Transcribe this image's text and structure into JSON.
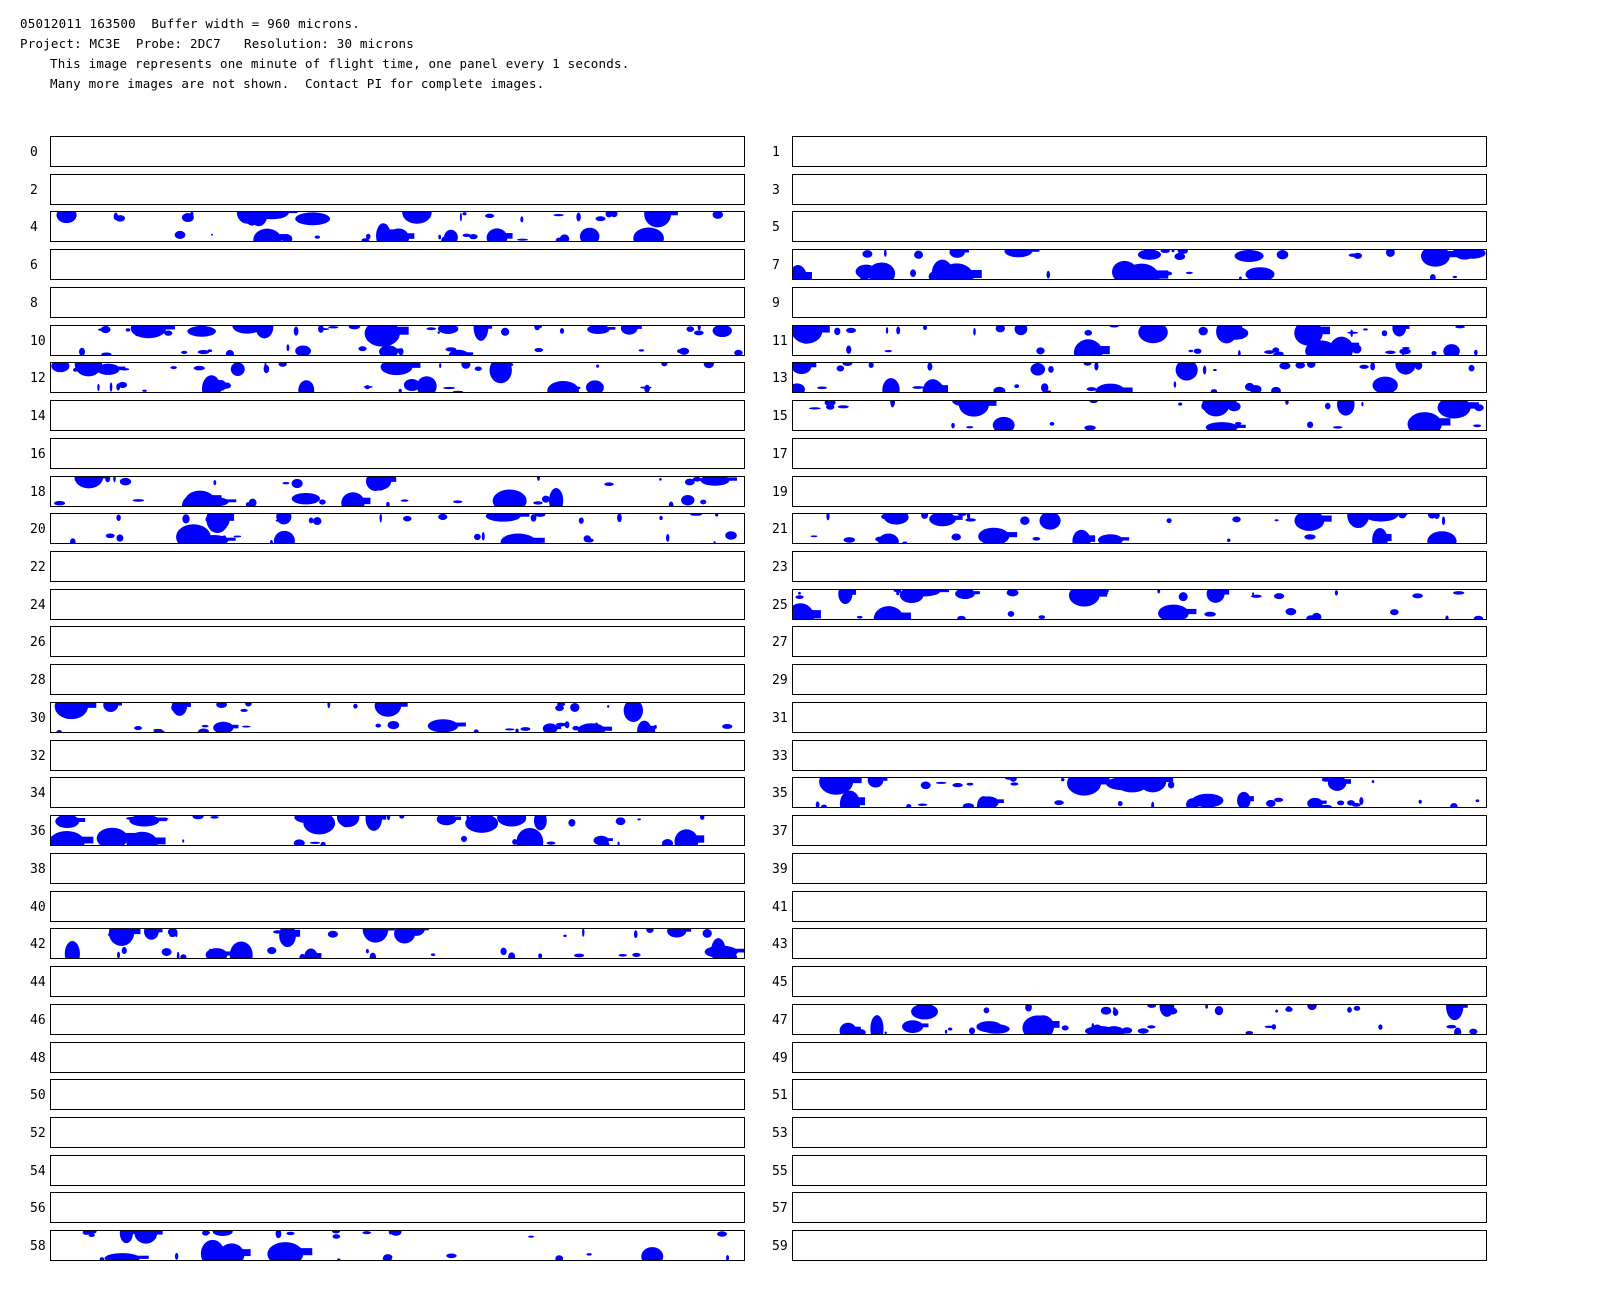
{
  "header": {
    "line1": "05012011 163500  Buffer width = 960 microns.",
    "line2": "Project: MC3E  Probe: 2DC7   Resolution: 30 microns",
    "line3": "This image represents one minute of flight time, one panel every 1 seconds.",
    "line4": "Many more images are not shown.  Contact PI for complete images."
  },
  "colors": {
    "particles": "#0000ff",
    "border": "#000000",
    "background": "#ffffff"
  },
  "panels": [
    {
      "label": "0",
      "has_particles": false
    },
    {
      "label": "1",
      "has_particles": false
    },
    {
      "label": "2",
      "has_particles": false
    },
    {
      "label": "3",
      "has_particles": false
    },
    {
      "label": "4",
      "has_particles": true
    },
    {
      "label": "5",
      "has_particles": false
    },
    {
      "label": "6",
      "has_particles": false
    },
    {
      "label": "7",
      "has_particles": true
    },
    {
      "label": "8",
      "has_particles": false
    },
    {
      "label": "9",
      "has_particles": false
    },
    {
      "label": "10",
      "has_particles": true
    },
    {
      "label": "11",
      "has_particles": true
    },
    {
      "label": "12",
      "has_particles": true
    },
    {
      "label": "13",
      "has_particles": true
    },
    {
      "label": "14",
      "has_particles": false
    },
    {
      "label": "15",
      "has_particles": true
    },
    {
      "label": "16",
      "has_particles": false
    },
    {
      "label": "17",
      "has_particles": false
    },
    {
      "label": "18",
      "has_particles": true
    },
    {
      "label": "19",
      "has_particles": false
    },
    {
      "label": "20",
      "has_particles": true
    },
    {
      "label": "21",
      "has_particles": true
    },
    {
      "label": "22",
      "has_particles": false
    },
    {
      "label": "23",
      "has_particles": false
    },
    {
      "label": "24",
      "has_particles": false
    },
    {
      "label": "25",
      "has_particles": true
    },
    {
      "label": "26",
      "has_particles": false
    },
    {
      "label": "27",
      "has_particles": false
    },
    {
      "label": "28",
      "has_particles": false
    },
    {
      "label": "29",
      "has_particles": false
    },
    {
      "label": "30",
      "has_particles": true
    },
    {
      "label": "31",
      "has_particles": false
    },
    {
      "label": "32",
      "has_particles": false
    },
    {
      "label": "33",
      "has_particles": false
    },
    {
      "label": "34",
      "has_particles": false
    },
    {
      "label": "35",
      "has_particles": true
    },
    {
      "label": "36",
      "has_particles": true
    },
    {
      "label": "37",
      "has_particles": false
    },
    {
      "label": "38",
      "has_particles": false
    },
    {
      "label": "39",
      "has_particles": false
    },
    {
      "label": "40",
      "has_particles": false
    },
    {
      "label": "41",
      "has_particles": false
    },
    {
      "label": "42",
      "has_particles": true
    },
    {
      "label": "43",
      "has_particles": false
    },
    {
      "label": "44",
      "has_particles": false
    },
    {
      "label": "45",
      "has_particles": false
    },
    {
      "label": "46",
      "has_particles": false
    },
    {
      "label": "47",
      "has_particles": true
    },
    {
      "label": "48",
      "has_particles": false
    },
    {
      "label": "49",
      "has_particles": false
    },
    {
      "label": "50",
      "has_particles": false
    },
    {
      "label": "51",
      "has_particles": false
    },
    {
      "label": "52",
      "has_particles": false
    },
    {
      "label": "53",
      "has_particles": false
    },
    {
      "label": "54",
      "has_particles": false
    },
    {
      "label": "55",
      "has_particles": false
    },
    {
      "label": "56",
      "has_particles": false
    },
    {
      "label": "57",
      "has_particles": false
    },
    {
      "label": "58",
      "has_particles": true
    },
    {
      "label": "59",
      "has_particles": false
    }
  ]
}
